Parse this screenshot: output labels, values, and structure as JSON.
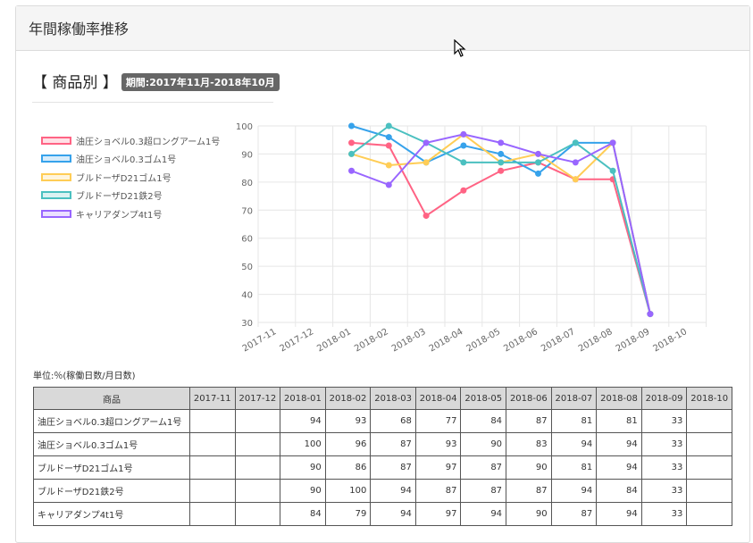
{
  "panel": {
    "title": "年間稼働率推移",
    "section_title": "【 商品別 】",
    "period": "期間:2017年11月-2018年10月"
  },
  "unit_label": "単位:％(稼働日数/月日数)",
  "colors": {
    "series": [
      "#ff6384",
      "#36a2eb",
      "#ffcd56",
      "#4bc0c0",
      "#9966ff"
    ],
    "table_header_bg": "#d9d9d9",
    "badge_bg": "#666666"
  },
  "chart_data": {
    "type": "line",
    "title": "",
    "xlabel": "",
    "ylabel": "",
    "ylim": [
      30,
      100
    ],
    "yticks": [
      30,
      40,
      50,
      60,
      70,
      80,
      90,
      100
    ],
    "categories": [
      "2017-11",
      "2017-12",
      "2018-01",
      "2018-02",
      "2018-03",
      "2018-04",
      "2018-05",
      "2018-06",
      "2018-07",
      "2018-08",
      "2018-09",
      "2018-10"
    ],
    "legend_position": "left",
    "grid": true,
    "series": [
      {
        "name": "油圧ショベル0.3超ロングアーム1号",
        "values": [
          null,
          null,
          94,
          93,
          68,
          77,
          84,
          87,
          81,
          81,
          33,
          null
        ]
      },
      {
        "name": "油圧ショベル0.3ゴム1号",
        "values": [
          null,
          null,
          100,
          96,
          87,
          93,
          90,
          83,
          94,
          94,
          33,
          null
        ]
      },
      {
        "name": "ブルドーザD21ゴム1号",
        "values": [
          null,
          null,
          90,
          86,
          87,
          97,
          87,
          90,
          81,
          94,
          33,
          null
        ]
      },
      {
        "name": "ブルドーザD21鉄2号",
        "values": [
          null,
          null,
          90,
          100,
          94,
          87,
          87,
          87,
          94,
          84,
          33,
          null
        ]
      },
      {
        "name": "キャリアダンプ4t1号",
        "values": [
          null,
          null,
          84,
          79,
          94,
          97,
          94,
          90,
          87,
          94,
          33,
          null
        ]
      }
    ]
  },
  "table": {
    "header_product": "商品",
    "months": [
      "2017-11",
      "2017-12",
      "2018-01",
      "2018-02",
      "2018-03",
      "2018-04",
      "2018-05",
      "2018-06",
      "2018-07",
      "2018-08",
      "2018-09",
      "2018-10"
    ],
    "rows": [
      {
        "name": "油圧ショベル0.3超ロングアーム1号",
        "values": [
          "",
          "",
          "94",
          "93",
          "68",
          "77",
          "84",
          "87",
          "81",
          "81",
          "33",
          ""
        ]
      },
      {
        "name": "油圧ショベル0.3ゴム1号",
        "values": [
          "",
          "",
          "100",
          "96",
          "87",
          "93",
          "90",
          "83",
          "94",
          "94",
          "33",
          ""
        ]
      },
      {
        "name": "ブルドーザD21ゴム1号",
        "values": [
          "",
          "",
          "90",
          "86",
          "87",
          "97",
          "87",
          "90",
          "81",
          "94",
          "33",
          ""
        ]
      },
      {
        "name": "ブルドーザD21鉄2号",
        "values": [
          "",
          "",
          "90",
          "100",
          "94",
          "87",
          "87",
          "87",
          "94",
          "84",
          "33",
          ""
        ]
      },
      {
        "name": "キャリアダンプ4t1号",
        "values": [
          "",
          "",
          "84",
          "79",
          "94",
          "97",
          "94",
          "90",
          "87",
          "94",
          "33",
          ""
        ]
      }
    ]
  }
}
